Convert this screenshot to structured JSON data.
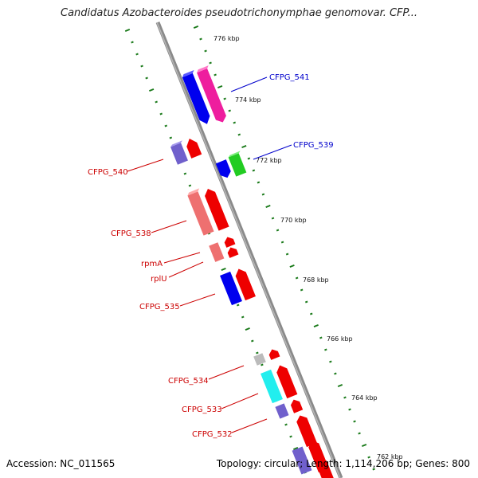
{
  "title": "Candidatus Azobacteroides pseudotrichonymphae genomovar. CFP...",
  "footer": {
    "accession": "Accession: NC_011565",
    "topology": "Topology: circular; Length: 1,114,206 bp; Genes: 800"
  },
  "ticks": [
    {
      "label": "776 kbp",
      "kbp": 776
    },
    {
      "label": "774 kbp",
      "kbp": 774
    },
    {
      "label": "772 kbp",
      "kbp": 772
    },
    {
      "label": "770 kbp",
      "kbp": 770
    },
    {
      "label": "768 kbp",
      "kbp": 768
    },
    {
      "label": "766 kbp",
      "kbp": 766
    },
    {
      "label": "764 kbp",
      "kbp": 764
    },
    {
      "label": "762 kbp",
      "kbp": 762
    }
  ],
  "gene_labels": [
    {
      "label": "CFPG_541",
      "color": "#0000cc",
      "side": "right"
    },
    {
      "label": "CFPG_539",
      "color": "#0000cc",
      "side": "right"
    },
    {
      "label": "CFPG_540",
      "color": "#cc0000",
      "side": "left"
    },
    {
      "label": "CFPG_538",
      "color": "#cc0000",
      "side": "left"
    },
    {
      "label": "rpmA",
      "color": "#cc0000",
      "side": "left"
    },
    {
      "label": "rplU",
      "color": "#cc0000",
      "side": "left"
    },
    {
      "label": "CFPG_535",
      "color": "#cc0000",
      "side": "left"
    },
    {
      "label": "CFPG_534",
      "color": "#cc0000",
      "side": "left"
    },
    {
      "label": "CFPG_533",
      "color": "#cc0000",
      "side": "left"
    },
    {
      "label": "CFPG_532",
      "color": "#cc0000",
      "side": "left"
    }
  ],
  "colors": {
    "backbone": "#8a8a8a",
    "tick": "#1a7a1a",
    "blue_gene": "#0000ee",
    "magenta_gene": "#ee1e9e",
    "red_gene": "#ee0000",
    "pink_gene": "#ee7070",
    "purple_gene": "#7060cc",
    "green_gene": "#22cc22",
    "cyan_gene": "#22eeee",
    "gray_gene": "#bbbbbb"
  }
}
